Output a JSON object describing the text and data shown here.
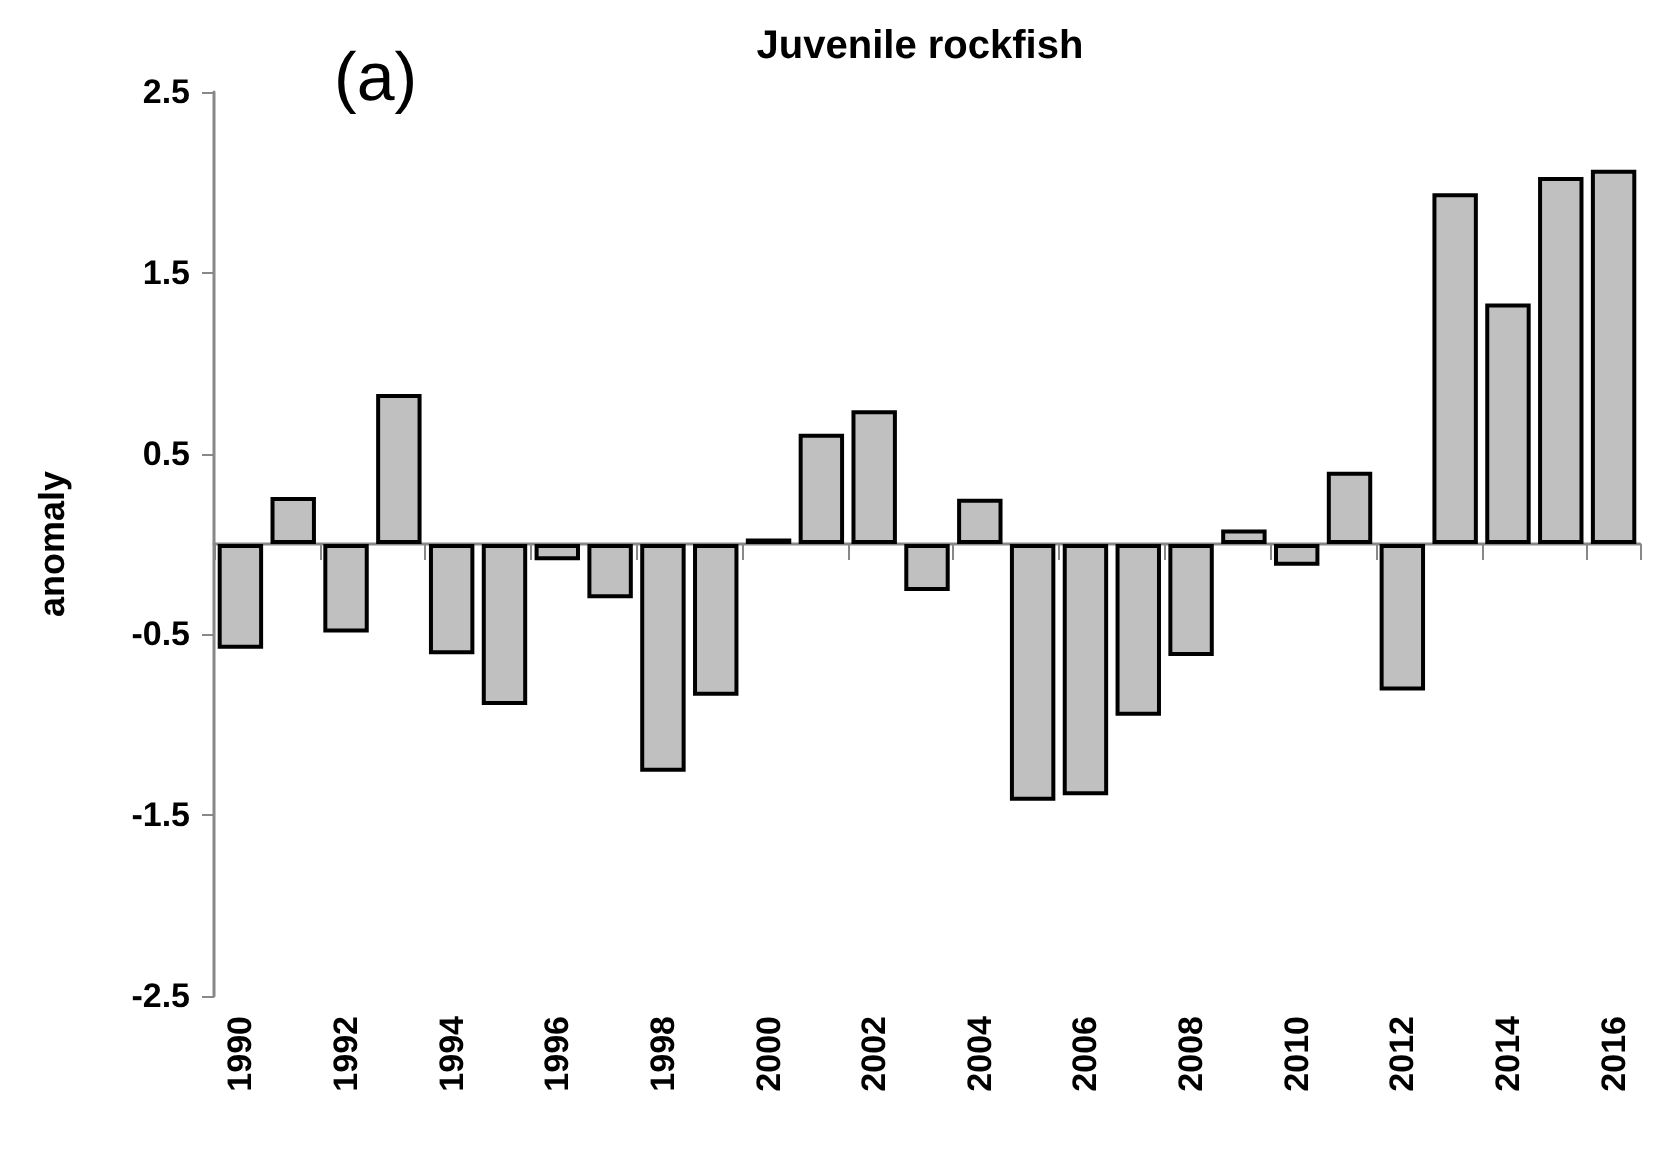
{
  "chart_data": {
    "type": "bar",
    "title": "Juvenile rockfish",
    "ylabel": "anomaly",
    "annotations": [
      "(a)"
    ],
    "categories": [
      "1990",
      null,
      "1992",
      null,
      "1994",
      null,
      "1996",
      null,
      "1998",
      null,
      "2000",
      null,
      "2002",
      null,
      "2004",
      null,
      "2006",
      null,
      "2008",
      null,
      "2010",
      null,
      "2012",
      null,
      "2014",
      null,
      "2016"
    ],
    "values": [
      -0.58,
      0.26,
      -0.49,
      0.83,
      -0.61,
      -0.89,
      -0.09,
      -0.3,
      -1.26,
      -0.84,
      0.03,
      0.61,
      0.74,
      -0.26,
      0.25,
      -1.42,
      -1.39,
      -0.95,
      -0.62,
      0.08,
      -0.12,
      0.4,
      -0.81,
      1.94,
      1.33,
      2.03,
      2.07
    ],
    "color": "#c0c0c0",
    "ylim": [
      -2.5,
      2.5
    ],
    "yticks": [
      -2.5,
      -1.5,
      -0.5,
      0.5,
      1.5,
      2.5
    ],
    "grid": false
  }
}
